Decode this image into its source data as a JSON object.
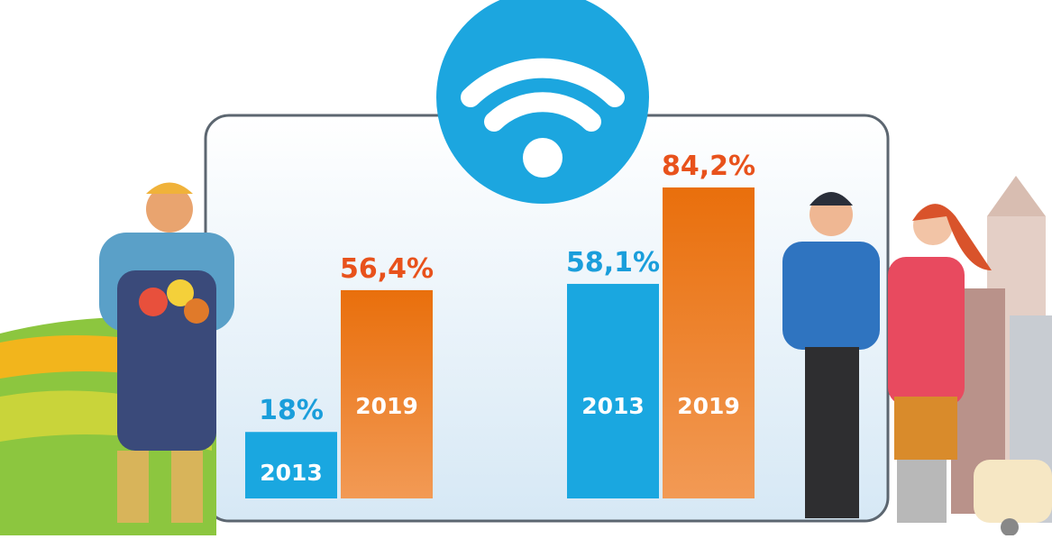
{
  "chart_data": {
    "type": "bar",
    "categories": [
      null,
      null
    ],
    "series": [
      {
        "name": "2013",
        "color": "#1aa7e0",
        "label_color": "#1a9edb",
        "values": [
          18,
          58.1
        ],
        "value_labels": [
          "18%",
          "58,1%"
        ]
      },
      {
        "name": "2019",
        "color": "#ec7a1e",
        "label_color": "#e8521c",
        "values": [
          56.4,
          84.2
        ],
        "value_labels": [
          "56,4%",
          "84,2%"
        ]
      }
    ]
  }
}
